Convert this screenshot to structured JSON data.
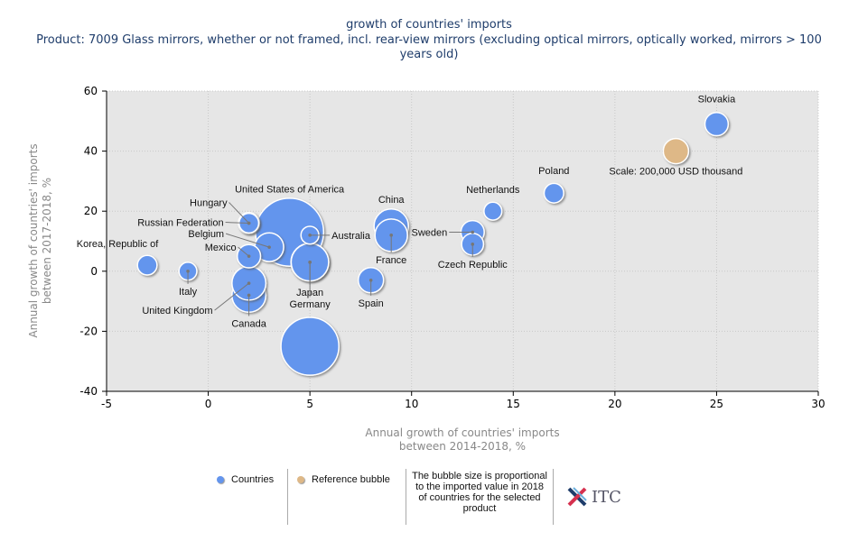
{
  "title": "growth of countries' imports",
  "subtitle": "Product: 7009 Glass mirrors, whether or not framed, incl. rear-view mirrors (excluding optical mirrors, optically worked, mirrors > 100 years old)",
  "colors": {
    "country": "#6495ed",
    "reference": "#deb887",
    "plot_bg": "#e6e6e6"
  },
  "chart_data": {
    "type": "scatter",
    "subtype": "bubble",
    "title": "growth of countries' imports",
    "subtitle": "Product: 7009 Glass mirrors, whether or not framed, incl. rear-view mirrors (excluding optical mirrors, optically worked, mirrors > 100 years old)",
    "xlabel": "Annual growth of countries' imports between 2014-2018, %",
    "ylabel": "Annual growth of countries' imports between 2017-2018, %",
    "xlim": [
      -5,
      30
    ],
    "ylim": [
      -40,
      60
    ],
    "xticks": [
      -5,
      0,
      5,
      10,
      15,
      20,
      25,
      30
    ],
    "yticks": [
      -40,
      -20,
      0,
      20,
      40,
      60
    ],
    "grid": true,
    "legend": [
      "Countries",
      "Reference bubble"
    ],
    "size_note": "The bubble size is proportional to the imported value in 2018 of countries for the selected product",
    "reference_bubble": {
      "label": "Scale: 200,000 USD thousand",
      "x": 23,
      "y": 40,
      "size": 200000
    },
    "series": [
      {
        "name": "Countries",
        "points": [
          {
            "label": "",
            "x": 5,
            "y": -25,
            "size": 1050000
          },
          {
            "label": "United States of America",
            "x": 4,
            "y": 13,
            "size": 1450000
          },
          {
            "label": "Japan",
            "x": 5,
            "y": 3,
            "size": 450000
          },
          {
            "label": "Germany",
            "x": 5,
            "y": 3,
            "size": 440000
          },
          {
            "label": "China",
            "x": 9,
            "y": 15,
            "size": 370000
          },
          {
            "label": "France",
            "x": 9,
            "y": 12,
            "size": 330000
          },
          {
            "label": "Canada",
            "x": 2,
            "y": -8,
            "size": 360000
          },
          {
            "label": "United Kingdom",
            "x": 2,
            "y": -4,
            "size": 360000
          },
          {
            "label": "Belgium",
            "x": 3,
            "y": 8,
            "size": 260000
          },
          {
            "label": "Spain",
            "x": 8,
            "y": -3,
            "size": 200000
          },
          {
            "label": "Slovakia",
            "x": 25,
            "y": 49,
            "size": 170000
          },
          {
            "label": "Sweden",
            "x": 13,
            "y": 13,
            "size": 170000
          },
          {
            "label": "Czech Republic",
            "x": 13,
            "y": 9,
            "size": 150000
          },
          {
            "label": "Mexico",
            "x": 2,
            "y": 5,
            "size": 170000
          },
          {
            "label": "Russian Federation",
            "x": 2,
            "y": 16,
            "size": 140000
          },
          {
            "label": "Hungary",
            "x": 2,
            "y": 16,
            "size": 120000
          },
          {
            "label": "Poland",
            "x": 17,
            "y": 26,
            "size": 120000
          },
          {
            "label": "Korea, Republic of",
            "x": -3,
            "y": 2,
            "size": 120000
          },
          {
            "label": "Netherlands",
            "x": 14,
            "y": 20,
            "size": 100000
          },
          {
            "label": "Italy",
            "x": -1,
            "y": 0,
            "size": 100000
          },
          {
            "label": "Australia",
            "x": 5,
            "y": 12,
            "size": 100000
          }
        ]
      }
    ]
  },
  "legend": {
    "countries": "Countries",
    "reference": "Reference bubble",
    "note": "The bubble size is proportional to the imported value in 2018 of countries for the selected product",
    "logo_text": "ITC"
  }
}
